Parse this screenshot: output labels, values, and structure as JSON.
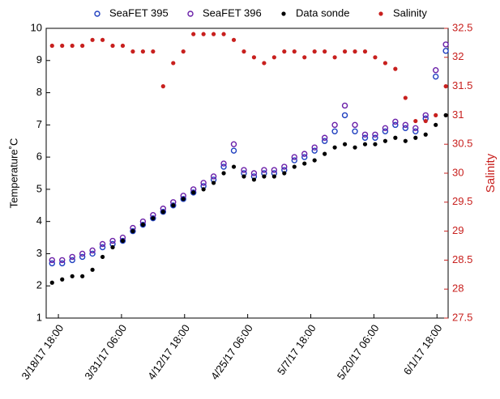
{
  "chart_data": {
    "type": "scatter",
    "x": [
      "2017-03-17T12:00",
      "2017-03-19T12:00",
      "2017-03-21T12:00",
      "2017-03-23T12:00",
      "2017-03-25T12:00",
      "2017-03-27T12:00",
      "2017-03-29T12:00",
      "2017-03-31T12:00",
      "2017-04-02T12:00",
      "2017-04-04T12:00",
      "2017-04-06T12:00",
      "2017-04-08T12:00",
      "2017-04-10T12:00",
      "2017-04-12T12:00",
      "2017-04-14T12:00",
      "2017-04-16T12:00",
      "2017-04-18T12:00",
      "2017-04-20T12:00",
      "2017-04-22T12:00",
      "2017-04-24T12:00",
      "2017-04-26T12:00",
      "2017-04-28T12:00",
      "2017-04-30T12:00",
      "2017-05-02T12:00",
      "2017-05-04T12:00",
      "2017-05-06T12:00",
      "2017-05-08T12:00",
      "2017-05-10T12:00",
      "2017-05-12T12:00",
      "2017-05-14T12:00",
      "2017-05-16T12:00",
      "2017-05-18T12:00",
      "2017-05-20T12:00",
      "2017-05-22T12:00",
      "2017-05-24T12:00",
      "2017-05-26T12:00",
      "2017-05-28T12:00",
      "2017-05-30T12:00",
      "2017-06-01T12:00",
      "2017-06-03T12:00"
    ],
    "series": [
      {
        "name": "SeaFET 395",
        "color": "#1f3fbf",
        "marker": "open",
        "values": [
          2.7,
          2.7,
          2.8,
          2.9,
          3.0,
          3.2,
          3.3,
          3.4,
          3.7,
          3.9,
          4.1,
          4.3,
          4.5,
          4.7,
          4.9,
          5.1,
          5.3,
          5.7,
          6.2,
          5.5,
          5.4,
          5.5,
          5.5,
          5.6,
          5.9,
          6.0,
          6.2,
          6.5,
          6.8,
          7.3,
          6.8,
          6.6,
          6.6,
          6.8,
          7.0,
          6.9,
          6.8,
          7.2,
          8.5,
          9.3
        ]
      },
      {
        "name": "SeaFET 396",
        "color": "#6a1fa8",
        "marker": "open",
        "values": [
          2.8,
          2.8,
          2.9,
          3.0,
          3.1,
          3.3,
          3.4,
          3.5,
          3.8,
          4.0,
          4.2,
          4.4,
          4.6,
          4.8,
          5.0,
          5.2,
          5.4,
          5.8,
          6.4,
          5.6,
          5.5,
          5.6,
          5.6,
          5.7,
          6.0,
          6.1,
          6.3,
          6.6,
          7.0,
          7.6,
          7.0,
          6.7,
          6.7,
          6.9,
          7.1,
          7.0,
          6.9,
          7.3,
          8.7,
          9.5
        ]
      },
      {
        "name": "Data sonde",
        "color": "#000000",
        "marker": "filled",
        "values": [
          2.1,
          2.2,
          2.3,
          2.3,
          2.5,
          2.9,
          3.2,
          3.4,
          3.7,
          3.9,
          4.1,
          4.3,
          4.5,
          4.7,
          4.9,
          5.0,
          5.2,
          5.5,
          5.7,
          5.4,
          5.3,
          5.4,
          5.4,
          5.5,
          5.7,
          5.8,
          5.9,
          6.1,
          6.3,
          6.4,
          6.3,
          6.4,
          6.4,
          6.5,
          6.6,
          6.5,
          6.6,
          6.7,
          7.0,
          7.3
        ]
      },
      {
        "name": "Salinity",
        "color": "#c8201e",
        "marker": "filled",
        "axis": "y2",
        "values": [
          32.2,
          32.2,
          32.2,
          32.2,
          32.3,
          32.3,
          32.2,
          32.2,
          32.1,
          32.1,
          32.1,
          31.5,
          31.9,
          32.1,
          32.4,
          32.4,
          32.4,
          32.4,
          32.3,
          32.1,
          32.0,
          31.9,
          32.0,
          32.1,
          32.1,
          32.0,
          32.1,
          32.1,
          32.0,
          32.1,
          32.1,
          32.1,
          32.0,
          31.9,
          31.8,
          31.3,
          30.9,
          30.9,
          31.0,
          31.5
        ]
      }
    ],
    "y_label": "Temperature˚C",
    "y2_label": "Salinity",
    "xlim": [
      "2017-03-16T08:00",
      "2017-06-03T23:00"
    ],
    "xticks": [
      {
        "value": "2017-03-18T18:00",
        "label": "3/18/17 18:00"
      },
      {
        "value": "2017-03-31T06:00",
        "label": "3/31/17 06:00"
      },
      {
        "value": "2017-04-12T18:00",
        "label": "4/12/17 18:00"
      },
      {
        "value": "2017-04-25T06:00",
        "label": "4/25/17 06:00"
      },
      {
        "value": "2017-05-07T18:00",
        "label": "5/7/17 18:00"
      },
      {
        "value": "2017-05-20T06:00",
        "label": "5/20/17 06:00"
      },
      {
        "value": "2017-06-01T18:00",
        "label": "6/1/17 18:00"
      }
    ],
    "ylim": [
      1,
      10
    ],
    "yticks": [
      1,
      2,
      3,
      4,
      5,
      6,
      7,
      8,
      9,
      10
    ],
    "y2lim": [
      27.5,
      32.5
    ],
    "y2ticks": [
      27.5,
      28,
      28.5,
      29,
      29.5,
      30,
      30.5,
      31,
      31.5,
      32,
      32.5
    ],
    "y2_color": "#c8201e",
    "legend": "top"
  }
}
